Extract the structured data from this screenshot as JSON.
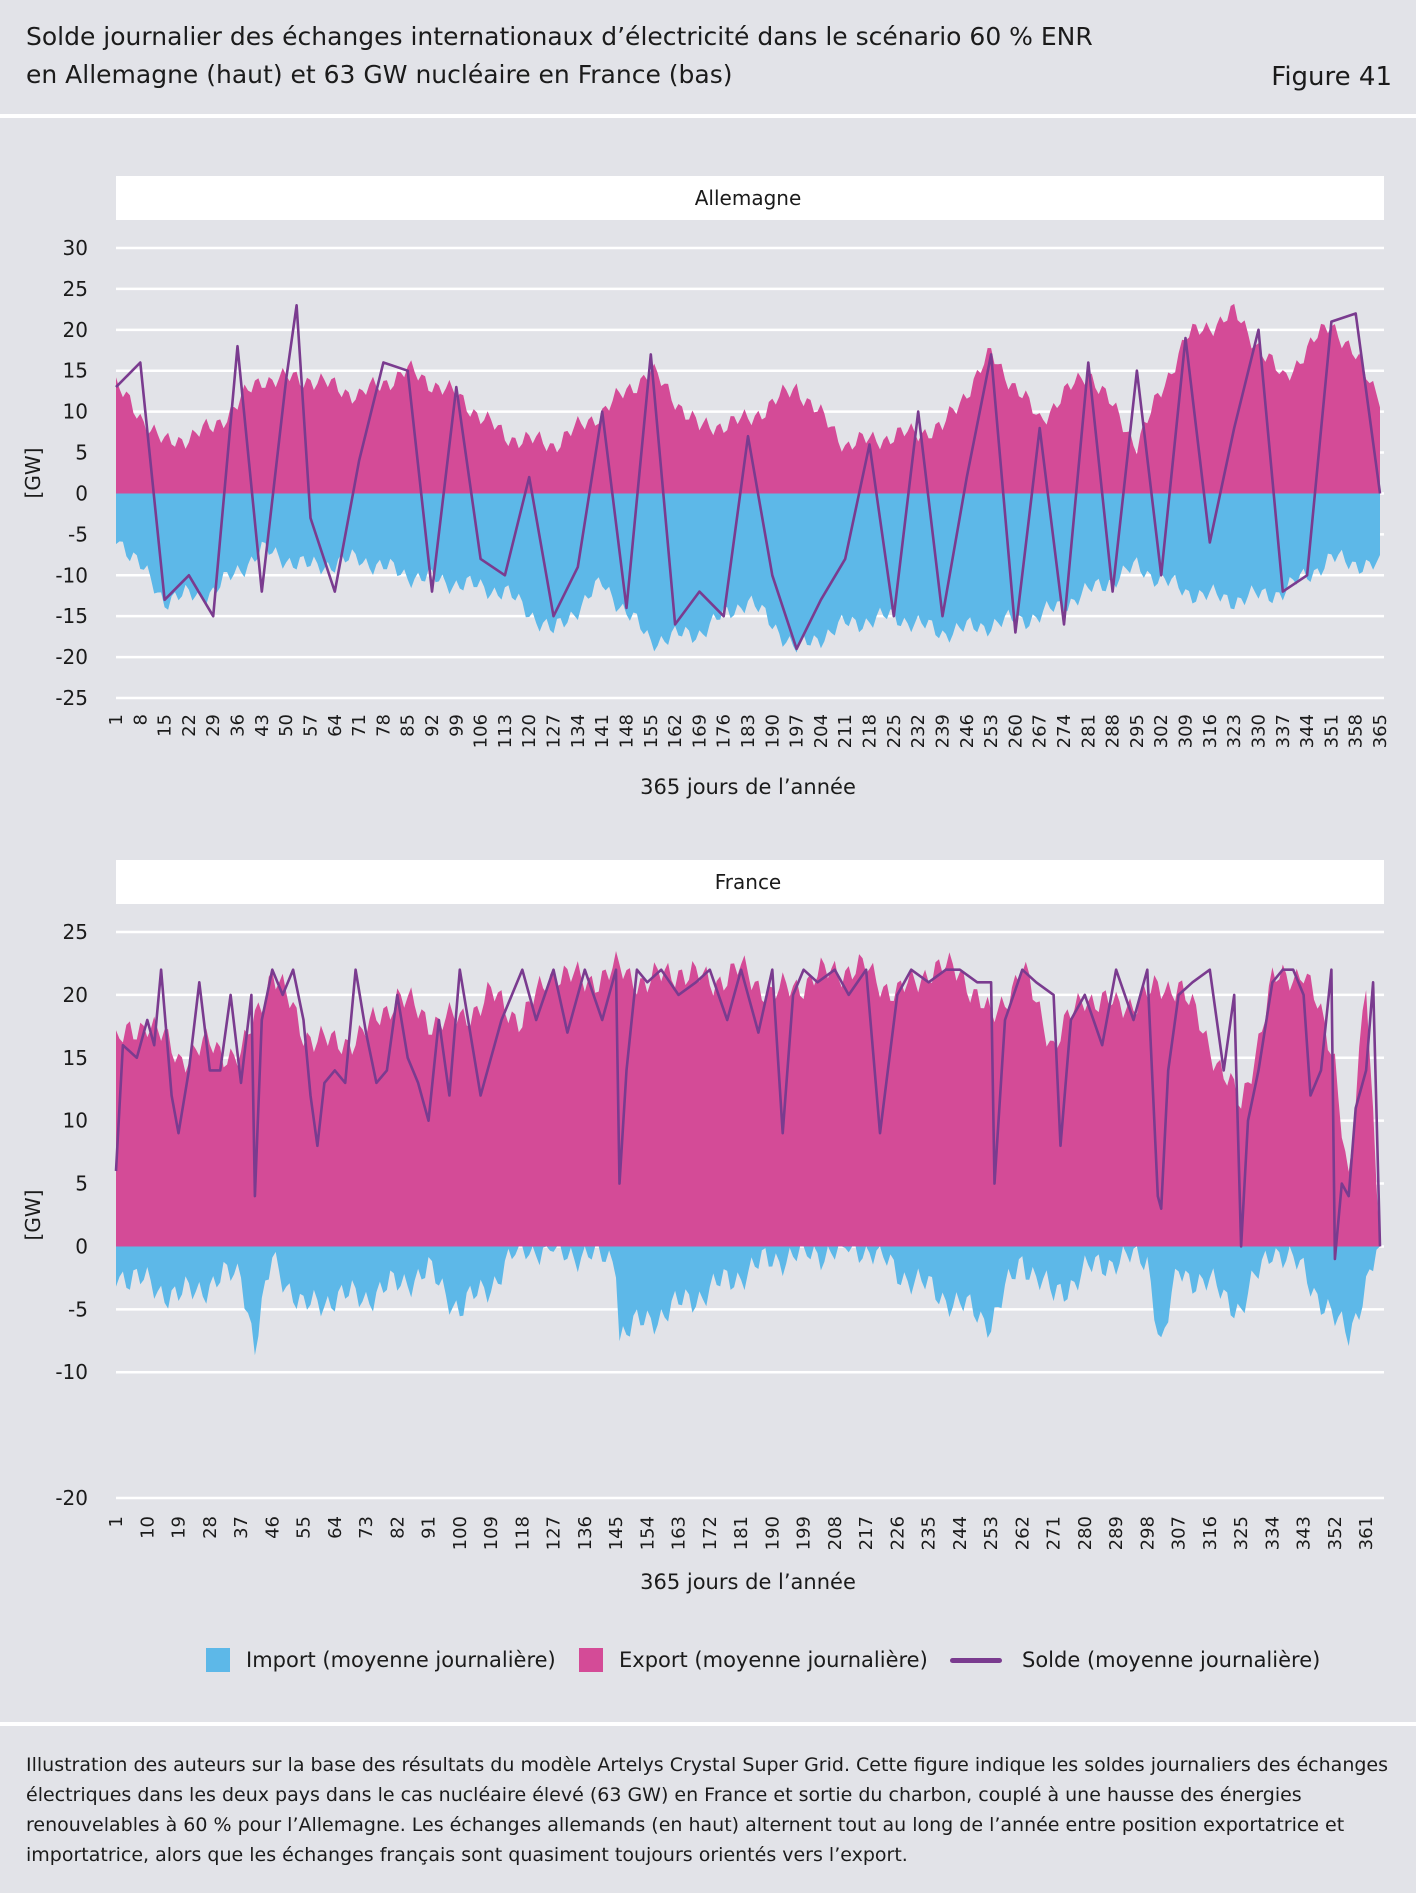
{
  "header": {
    "title_line1": "Solde journalier des échanges internationaux d’électricité dans le scénario 60 % ENR",
    "title_line2": "en Allemagne (haut) et 63 GW nucléaire en France (bas)",
    "figure_label": "Figure 41"
  },
  "colors": {
    "import": "#5db8e8",
    "export": "#d44b97",
    "solde": "#7a3b8f",
    "background": "#e2e3e8",
    "panel_strip": "#ffffff"
  },
  "legend": {
    "import_label": "Import (moyenne journalière)",
    "export_label": "Export (moyenne journalière)",
    "solde_label": "Solde (moyenne journalière)"
  },
  "chart_data": [
    {
      "type": "area",
      "panel_title": "Allemagne",
      "xlabel": "365 jours de l’année",
      "ylabel": "[GW]",
      "ylim": [
        -25,
        30
      ],
      "yticks": [
        30,
        25,
        20,
        15,
        10,
        5,
        0,
        -5,
        -10,
        -15,
        -20,
        -25
      ],
      "xticks": [
        "1",
        "8",
        "15",
        "22",
        "29",
        "36",
        "43",
        "50",
        "57",
        "64",
        "71",
        "78",
        "85",
        "92",
        "99",
        "106",
        "113",
        "120",
        "127",
        "134",
        "141",
        "148",
        "155",
        "162",
        "169",
        "176",
        "183",
        "190",
        "197",
        "204",
        "211",
        "218",
        "225",
        "232",
        "239",
        "246",
        "253",
        "260",
        "267",
        "274",
        "281",
        "288",
        "295",
        "302",
        "309",
        "316",
        "323",
        "330",
        "337",
        "344",
        "351",
        "358",
        "365"
      ],
      "grid": true,
      "series": [
        {
          "name": "Import (moyenne journalière)",
          "x": [
            1,
            15,
            29,
            43,
            57,
            71,
            85,
            99,
            113,
            127,
            141,
            155,
            169,
            183,
            197,
            211,
            225,
            239,
            253,
            267,
            281,
            295,
            309,
            323,
            337,
            351,
            365
          ],
          "values": [
            -5,
            -13,
            -12,
            -7,
            -9,
            -8,
            -10,
            -11,
            -12,
            -17,
            -11,
            -18,
            -17,
            -13,
            -19,
            -16,
            -15,
            -17,
            -16,
            -15,
            -12,
            -9,
            -12,
            -13,
            -12,
            -8,
            -9
          ]
        },
        {
          "name": "Export (moyenne journalière)",
          "x": [
            1,
            15,
            29,
            43,
            57,
            71,
            85,
            99,
            113,
            127,
            141,
            155,
            169,
            183,
            197,
            211,
            225,
            239,
            253,
            267,
            281,
            295,
            309,
            323,
            337,
            351,
            365
          ],
          "values": [
            13,
            6,
            8,
            14,
            14,
            12,
            15,
            12,
            7,
            6,
            10,
            15,
            8,
            9,
            13,
            6,
            7,
            8,
            17,
            9,
            15,
            6,
            19,
            22,
            14,
            21,
            12
          ]
        },
        {
          "name": "Solde (moyenne journalière)",
          "x": [
            1,
            8,
            15,
            22,
            29,
            36,
            43,
            50,
            53,
            57,
            64,
            71,
            78,
            85,
            92,
            99,
            106,
            113,
            120,
            127,
            134,
            141,
            148,
            155,
            162,
            169,
            176,
            183,
            190,
            197,
            204,
            211,
            218,
            225,
            232,
            239,
            246,
            253,
            260,
            267,
            274,
            281,
            288,
            295,
            302,
            309,
            316,
            323,
            330,
            337,
            344,
            351,
            358,
            365
          ],
          "values": [
            13,
            16,
            -13,
            -10,
            -15,
            18,
            -12,
            14,
            23,
            -3,
            -12,
            4,
            16,
            15,
            -12,
            13,
            -8,
            -10,
            2,
            -15,
            -9,
            10,
            -14,
            17,
            -16,
            -12,
            -15,
            7,
            -10,
            -19,
            -13,
            -8,
            6,
            -15,
            10,
            -15,
            2,
            17,
            -17,
            8,
            -16,
            16,
            -12,
            15,
            -10,
            19,
            -6,
            8,
            20,
            -12,
            -10,
            21,
            22,
            0
          ]
        }
      ]
    },
    {
      "type": "area",
      "panel_title": "France",
      "xlabel": "365 jours de l’année",
      "ylabel": "[GW]",
      "ylim": [
        -20,
        25
      ],
      "yticks": [
        25,
        20,
        15,
        10,
        5,
        0,
        -5,
        -10,
        -20
      ],
      "xticks": [
        "1",
        "10",
        "19",
        "28",
        "37",
        "46",
        "55",
        "64",
        "73",
        "82",
        "91",
        "100",
        "109",
        "118",
        "127",
        "136",
        "145",
        "154",
        "163",
        "172",
        "181",
        "190",
        "199",
        "208",
        "217",
        "226",
        "235",
        "244",
        "253",
        "262",
        "271",
        "280",
        "289",
        "298",
        "307",
        "316",
        "325",
        "334",
        "343",
        "352",
        "361"
      ],
      "grid": true,
      "series": [
        {
          "name": "Import (moyenne journalière)",
          "x": [
            1,
            10,
            19,
            28,
            37,
            41,
            46,
            55,
            64,
            73,
            82,
            91,
            100,
            109,
            118,
            145,
            146,
            190,
            217,
            226,
            253,
            262,
            271,
            280,
            289,
            298,
            302,
            307,
            316,
            325,
            334,
            343,
            352,
            356,
            361,
            365
          ],
          "values": [
            -2,
            -3,
            -4,
            -3,
            -2,
            -8,
            -1,
            -5,
            -4,
            -4,
            -3,
            -2,
            -5,
            -3,
            0,
            -1,
            -7,
            -1,
            0,
            -2,
            -6,
            -1,
            -4,
            -2,
            -1,
            -1,
            -8,
            -2,
            -3,
            -5,
            0,
            -2,
            -6,
            -7,
            -3,
            0
          ]
        },
        {
          "name": "Export (moyenne journalière)",
          "x": [
            1,
            10,
            19,
            28,
            37,
            46,
            55,
            64,
            73,
            82,
            91,
            100,
            109,
            118,
            127,
            136,
            145,
            154,
            163,
            172,
            181,
            190,
            199,
            208,
            217,
            226,
            235,
            244,
            253,
            262,
            271,
            280,
            289,
            298,
            307,
            316,
            325,
            334,
            343,
            352,
            356,
            361,
            365
          ],
          "values": [
            16,
            18,
            15,
            16,
            15,
            22,
            17,
            16,
            17,
            20,
            18,
            18,
            20,
            18,
            22,
            21,
            22,
            21,
            22,
            21,
            22,
            20,
            21,
            22,
            22,
            20,
            22,
            22,
            18,
            22,
            16,
            20,
            19,
            20,
            21,
            16,
            11,
            21,
            22,
            15,
            5,
            21,
            0
          ]
        },
        {
          "name": "Solde (moyenne journalière)",
          "x": [
            1,
            3,
            7,
            10,
            12,
            14,
            17,
            19,
            22,
            25,
            28,
            31,
            34,
            37,
            40,
            41,
            43,
            46,
            49,
            52,
            55,
            57,
            59,
            61,
            64,
            67,
            70,
            73,
            76,
            79,
            82,
            85,
            88,
            91,
            94,
            97,
            100,
            103,
            106,
            109,
            112,
            115,
            118,
            122,
            127,
            131,
            136,
            141,
            145,
            146,
            148,
            151,
            154,
            158,
            163,
            168,
            172,
            177,
            181,
            186,
            190,
            193,
            196,
            199,
            203,
            208,
            212,
            217,
            221,
            226,
            230,
            235,
            240,
            244,
            249,
            253,
            254,
            257,
            262,
            266,
            271,
            273,
            276,
            280,
            285,
            289,
            294,
            298,
            301,
            302,
            304,
            307,
            311,
            316,
            320,
            323,
            325,
            327,
            330,
            334,
            337,
            340,
            343,
            345,
            348,
            351,
            352,
            354,
            356,
            358,
            361,
            363,
            365
          ],
          "values": [
            6,
            16,
            15,
            18,
            16,
            22,
            12,
            9,
            14,
            21,
            14,
            14,
            20,
            13,
            20,
            4,
            18,
            22,
            20,
            22,
            18,
            12,
            8,
            13,
            14,
            13,
            22,
            17,
            13,
            14,
            20,
            15,
            13,
            10,
            18,
            12,
            22,
            17,
            12,
            15,
            18,
            20,
            22,
            18,
            22,
            17,
            22,
            18,
            22,
            5,
            14,
            22,
            21,
            22,
            20,
            21,
            22,
            18,
            22,
            17,
            22,
            9,
            20,
            22,
            21,
            22,
            20,
            22,
            9,
            20,
            22,
            21,
            22,
            22,
            21,
            21,
            5,
            18,
            22,
            21,
            20,
            8,
            18,
            20,
            16,
            22,
            18,
            22,
            4,
            3,
            14,
            20,
            21,
            22,
            14,
            20,
            0,
            10,
            14,
            21,
            22,
            22,
            20,
            12,
            14,
            22,
            -1,
            5,
            4,
            11,
            14,
            21,
            0
          ]
        }
      ]
    }
  ],
  "footnote": "Illustration des auteurs sur la base des résultats du modèle Artelys Crystal Super Grid. Cette figure indique les soldes journaliers des échanges électriques dans les deux pays dans le cas nucléaire élevé (63 GW) en France et sortie du charbon, couplé à une hausse des énergies renouvelables à 60 % pour l’Allemagne. Les échanges allemands (en haut) alternent tout au long de l’année entre position exportatrice et importatrice, alors que les échanges français sont quasiment toujours orientés vers l’export."
}
